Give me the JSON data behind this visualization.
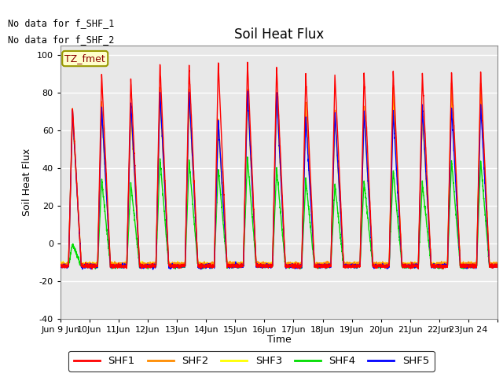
{
  "title": "Soil Heat Flux",
  "ylabel": "Soil Heat Flux",
  "xlabel": "Time",
  "ylim": [
    -40,
    105
  ],
  "yticks": [
    -40,
    -20,
    0,
    20,
    40,
    60,
    80,
    100
  ],
  "colors": {
    "SHF1": "#ff0000",
    "SHF2": "#ff8c00",
    "SHF3": "#ffff00",
    "SHF4": "#00dd00",
    "SHF5": "#0000ff"
  },
  "no_data_text": [
    "No data for f_SHF_1",
    "No data for f_SHF_2"
  ],
  "tz_label": "TZ_fmet",
  "plot_bg_color": "#e8e8e8",
  "legend_entries": [
    "SHF1",
    "SHF2",
    "SHF3",
    "SHF4",
    "SHF5"
  ],
  "n_days": 15,
  "pts_per_day": 240
}
